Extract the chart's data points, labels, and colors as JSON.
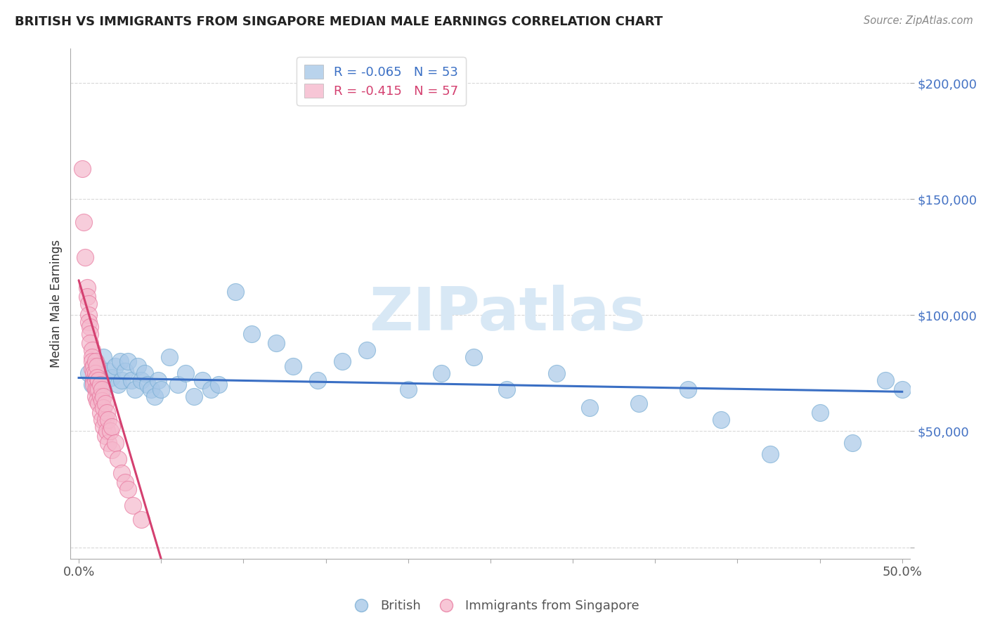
{
  "title": "BRITISH VS IMMIGRANTS FROM SINGAPORE MEDIAN MALE EARNINGS CORRELATION CHART",
  "source": "Source: ZipAtlas.com",
  "ylabel": "Median Male Earnings",
  "xlim": [
    -0.005,
    0.505
  ],
  "ylim": [
    -5000,
    215000
  ],
  "xtick_positions": [
    0.0,
    0.05,
    0.1,
    0.15,
    0.2,
    0.25,
    0.3,
    0.35,
    0.4,
    0.45,
    0.5
  ],
  "xtick_labels": [
    "0.0%",
    "",
    "",
    "",
    "",
    "",
    "",
    "",
    "",
    "",
    "50.0%"
  ],
  "ytick_positions": [
    0,
    50000,
    100000,
    150000,
    200000
  ],
  "ytick_labels": [
    "",
    "$50,000",
    "$100,000",
    "$150,000",
    "$200,000"
  ],
  "watermark_text": "ZIPatlas",
  "legend_top_blue": "R = -0.065   N = 53",
  "legend_top_pink": "R = -0.415   N = 57",
  "legend_bottom": [
    "British",
    "Immigrants from Singapore"
  ],
  "blue_scatter_color": "#a8c8e8",
  "blue_scatter_edge": "#7aaed4",
  "pink_scatter_color": "#f5b8cc",
  "pink_scatter_edge": "#e87aa0",
  "blue_line_color": "#3a6fc4",
  "pink_line_color": "#d44070",
  "blue_legend_patch": "#a8c8e8",
  "pink_legend_patch": "#f5b8cc",
  "legend_blue_text": "#3a6fc4",
  "legend_pink_text": "#d44070",
  "ytick_color": "#4472c4",
  "xtick_color": "#555555",
  "ylabel_color": "#333333",
  "grid_color": "#d0d0d0",
  "background": "#ffffff",
  "title_color": "#222222",
  "source_color": "#888888",
  "watermark_color": "#d8e8f5",
  "british_x": [
    0.006,
    0.008,
    0.01,
    0.012,
    0.013,
    0.015,
    0.015,
    0.018,
    0.02,
    0.022,
    0.024,
    0.025,
    0.026,
    0.028,
    0.03,
    0.032,
    0.034,
    0.036,
    0.038,
    0.04,
    0.042,
    0.044,
    0.046,
    0.048,
    0.05,
    0.055,
    0.06,
    0.065,
    0.07,
    0.075,
    0.08,
    0.085,
    0.095,
    0.105,
    0.12,
    0.13,
    0.145,
    0.16,
    0.175,
    0.2,
    0.22,
    0.24,
    0.26,
    0.29,
    0.31,
    0.34,
    0.37,
    0.39,
    0.42,
    0.45,
    0.47,
    0.49,
    0.5
  ],
  "british_y": [
    75000,
    70000,
    80000,
    78000,
    72000,
    82000,
    68000,
    76000,
    73000,
    78000,
    70000,
    80000,
    72000,
    76000,
    80000,
    72000,
    68000,
    78000,
    72000,
    75000,
    70000,
    68000,
    65000,
    72000,
    68000,
    82000,
    70000,
    75000,
    65000,
    72000,
    68000,
    70000,
    110000,
    92000,
    88000,
    78000,
    72000,
    80000,
    85000,
    68000,
    75000,
    82000,
    68000,
    75000,
    60000,
    62000,
    68000,
    55000,
    40000,
    58000,
    45000,
    72000,
    68000
  ],
  "singapore_x": [
    0.002,
    0.003,
    0.004,
    0.005,
    0.005,
    0.006,
    0.006,
    0.006,
    0.007,
    0.007,
    0.007,
    0.008,
    0.008,
    0.008,
    0.008,
    0.009,
    0.009,
    0.009,
    0.009,
    0.01,
    0.01,
    0.01,
    0.01,
    0.01,
    0.011,
    0.011,
    0.011,
    0.011,
    0.012,
    0.012,
    0.012,
    0.013,
    0.013,
    0.013,
    0.014,
    0.014,
    0.014,
    0.015,
    0.015,
    0.015,
    0.016,
    0.016,
    0.016,
    0.017,
    0.017,
    0.018,
    0.018,
    0.019,
    0.02,
    0.02,
    0.022,
    0.024,
    0.026,
    0.028,
    0.03,
    0.033,
    0.038
  ],
  "singapore_y": [
    163000,
    140000,
    125000,
    112000,
    108000,
    105000,
    100000,
    97000,
    95000,
    92000,
    88000,
    85000,
    82000,
    80000,
    77000,
    78000,
    75000,
    72000,
    70000,
    80000,
    75000,
    72000,
    68000,
    65000,
    78000,
    73000,
    68000,
    63000,
    72000,
    68000,
    62000,
    70000,
    65000,
    58000,
    68000,
    63000,
    55000,
    65000,
    60000,
    52000,
    62000,
    55000,
    48000,
    58000,
    50000,
    55000,
    45000,
    50000,
    52000,
    42000,
    45000,
    38000,
    32000,
    28000,
    25000,
    18000,
    12000
  ],
  "blue_line_x0": 0.0,
  "blue_line_y0": 73000,
  "blue_line_x1": 0.5,
  "blue_line_y1": 67000,
  "pink_line_x0": 0.0,
  "pink_line_y0": 115000,
  "pink_line_x1": 0.05,
  "pink_line_y1": -5000
}
